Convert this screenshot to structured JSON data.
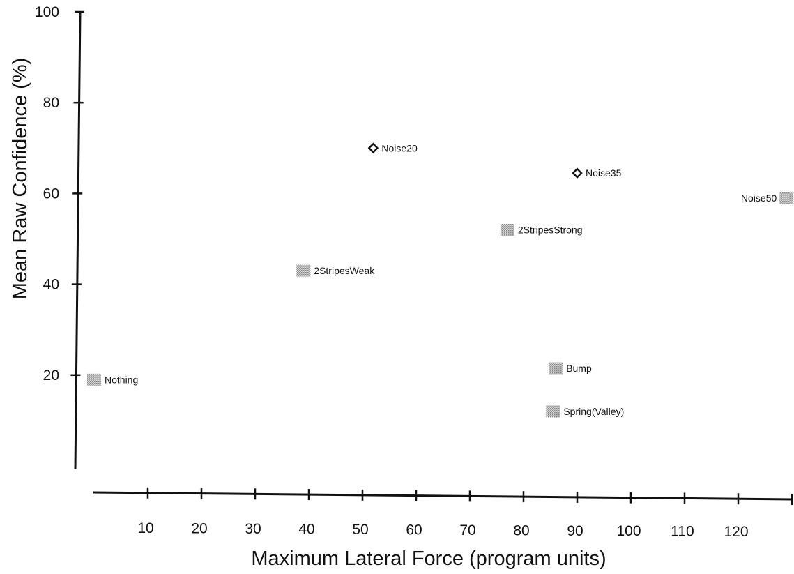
{
  "chart_data": {
    "type": "scatter",
    "title": "",
    "xlabel": "Maximum Lateral Force (program units)",
    "ylabel": "Mean Raw Confidence (%)",
    "xlim": [
      0,
      130
    ],
    "ylim": [
      0,
      100
    ],
    "x_ticks": [
      10,
      20,
      30,
      40,
      50,
      60,
      70,
      80,
      90,
      100,
      110,
      120
    ],
    "y_ticks": [
      20,
      40,
      60,
      80,
      100
    ],
    "grid": false,
    "legend": "none",
    "points": [
      {
        "label": "Nothing",
        "x": 0,
        "y": 19,
        "marker": "gray-square"
      },
      {
        "label": "2StripesWeak",
        "x": 39,
        "y": 43,
        "marker": "gray-square"
      },
      {
        "label": "Noise20",
        "x": 52,
        "y": 70,
        "marker": "open-diamond"
      },
      {
        "label": "2StripesStrong",
        "x": 77,
        "y": 52,
        "marker": "gray-square"
      },
      {
        "label": "Noise35",
        "x": 90,
        "y": 64.5,
        "marker": "open-diamond"
      },
      {
        "label": "Bump",
        "x": 86,
        "y": 21.5,
        "marker": "gray-square"
      },
      {
        "label": "Spring(Valley)",
        "x": 85.5,
        "y": 12,
        "marker": "gray-square"
      },
      {
        "label": "Noise50",
        "x": 129,
        "y": 59,
        "marker": "gray-square"
      }
    ]
  },
  "colors": {
    "axis": "#111111",
    "square_fill": "#b4b4b4",
    "diamond": "#111111"
  }
}
